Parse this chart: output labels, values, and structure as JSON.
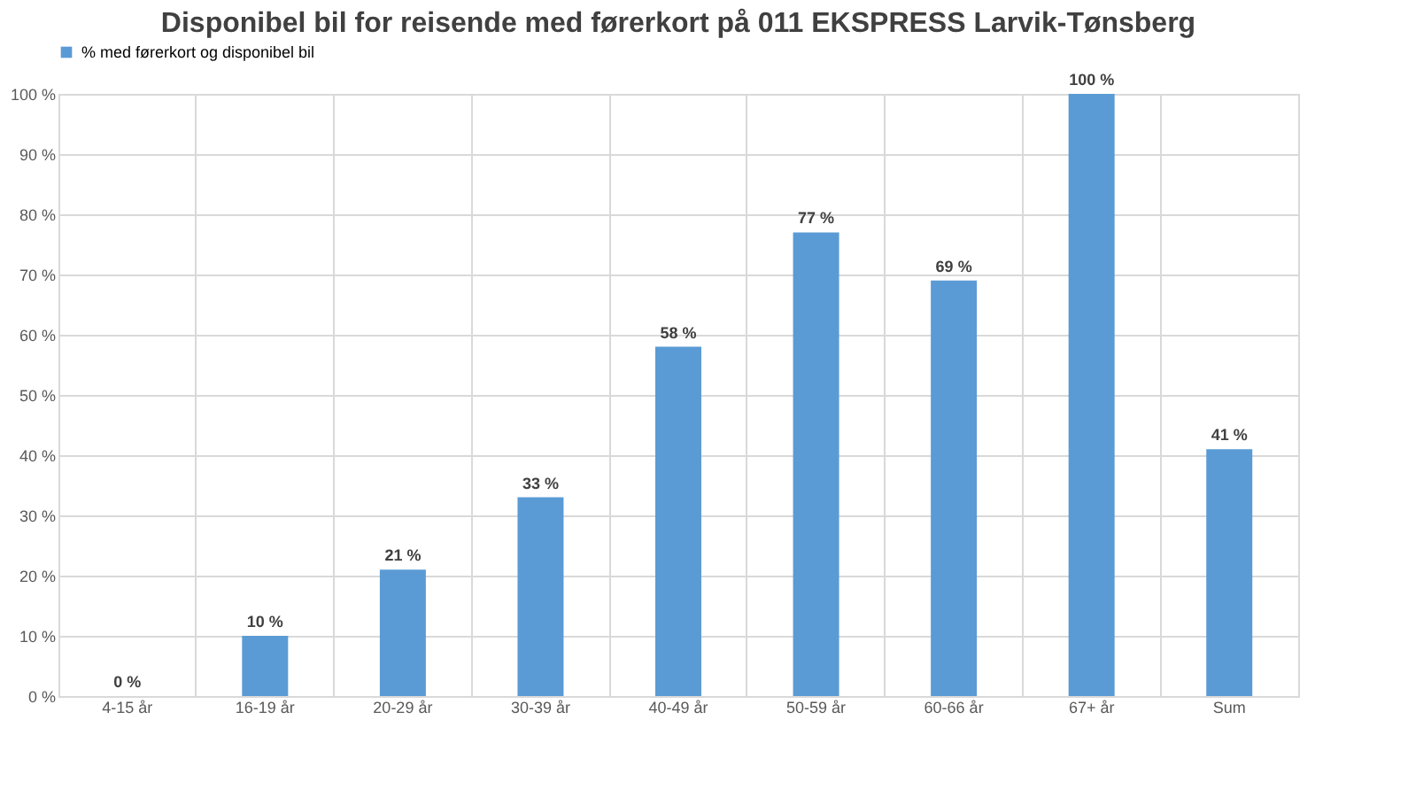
{
  "chart_data": {
    "type": "bar",
    "title": "Disponibel bil for reisende med førerkort på 011 EKSPRESS Larvik-Tønsberg",
    "categories": [
      "4-15 år",
      "16-19 år",
      "20-29 år",
      "30-39 år",
      "40-49 år",
      "50-59 år",
      "60-66 år",
      "67+ år",
      "Sum"
    ],
    "series": [
      {
        "name": "% med førerkort og disponibel bil",
        "color": "#5b9bd5",
        "values": [
          0,
          10,
          21,
          33,
          58,
          77,
          69,
          100,
          41
        ],
        "value_labels": [
          "0 %",
          "10 %",
          "21 %",
          "33 %",
          "58 %",
          "77 %",
          "69 %",
          "100 %",
          "41 %"
        ]
      }
    ],
    "ylim": [
      0,
      100
    ],
    "yticks": [
      {
        "value": 0,
        "label": "0 %"
      },
      {
        "value": 10,
        "label": "10 %"
      },
      {
        "value": 20,
        "label": "20 %"
      },
      {
        "value": 30,
        "label": "30 %"
      },
      {
        "value": 40,
        "label": "40 %"
      },
      {
        "value": 50,
        "label": "50 %"
      },
      {
        "value": 60,
        "label": "60 %"
      },
      {
        "value": 70,
        "label": "70 %"
      },
      {
        "value": 80,
        "label": "80 %"
      },
      {
        "value": 90,
        "label": "90 %"
      },
      {
        "value": 100,
        "label": "100 %"
      }
    ],
    "grid": true,
    "legend": "top"
  }
}
